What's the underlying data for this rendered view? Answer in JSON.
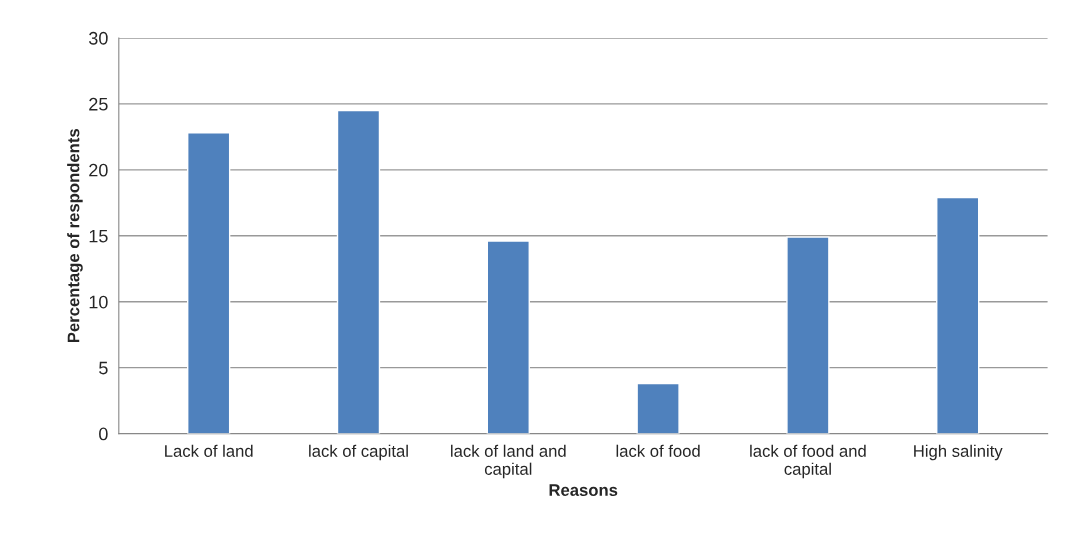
{
  "chart_data": {
    "type": "bar",
    "categories": [
      "Lack of land",
      "lack of capital",
      "lack of land and capital",
      "lack of food",
      "lack of food and capital",
      "High salinity"
    ],
    "values": [
      22.8,
      24.5,
      14.6,
      3.8,
      14.9,
      17.9
    ],
    "color": "#4f81bd",
    "xlabel": "Reasons",
    "ylabel": "Percentage of respondents",
    "ylim": [
      0,
      30
    ],
    "yticks": [
      0,
      5,
      10,
      15,
      20,
      25,
      30
    ],
    "grid": "y",
    "legend": false
  }
}
